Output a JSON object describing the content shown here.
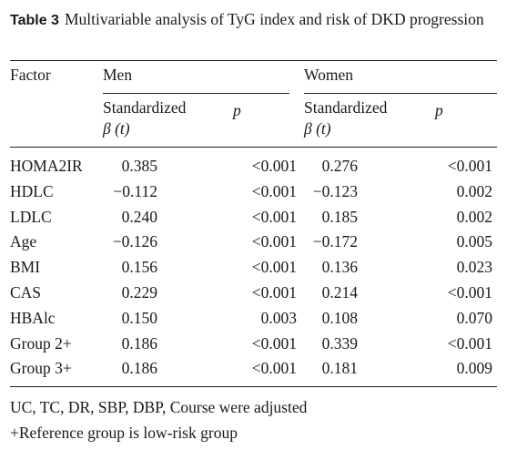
{
  "caption": {
    "label": "Table 3",
    "text": "Multivariable analysis of TyG index and risk of DKD progression"
  },
  "table": {
    "header": {
      "factor": "Factor",
      "groups": [
        "Men",
        "Women"
      ],
      "beta": [
        "Standardized",
        "β (t)"
      ],
      "p": "p"
    },
    "rows": [
      [
        "HOMA2IR",
        "0.385",
        "<0.001",
        "0.276",
        "<0.001"
      ],
      [
        "HDLC",
        "−0.112",
        "<0.001",
        "−0.123",
        "0.002"
      ],
      [
        "LDLC",
        "0.240",
        "<0.001",
        "0.185",
        "0.002"
      ],
      [
        "Age",
        "−0.126",
        "<0.001",
        "−0.172",
        "0.005"
      ],
      [
        "BMI",
        "0.156",
        "<0.001",
        "0.136",
        "0.023"
      ],
      [
        "CAS",
        "0.229",
        "<0.001",
        "0.214",
        "<0.001"
      ],
      [
        "HBAlc",
        "0.150",
        "0.003",
        "0.108",
        "0.070"
      ],
      [
        "Group 2+",
        "0.186",
        "<0.001",
        "0.339",
        "<0.001"
      ],
      [
        "Group 3+",
        "0.186",
        "<0.001",
        "0.181",
        "0.009"
      ]
    ]
  },
  "footnotes": [
    "UC, TC, DR, SBP, DBP, Course were adjusted",
    "+Reference group is low-risk group"
  ]
}
